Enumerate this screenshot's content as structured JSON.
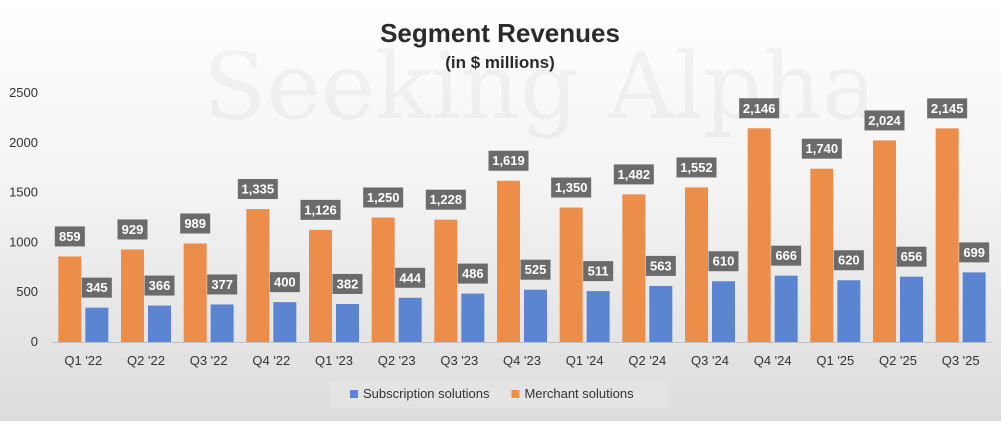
{
  "chart_data": {
    "type": "bar",
    "title": "Segment Revenues",
    "subtitle": "(in $ millions)",
    "watermark": "Seeking Alpha",
    "categories": [
      "Q1 '22",
      "Q2 '22",
      "Q3 '22",
      "Q4 '22",
      "Q1 '23",
      "Q2 '23",
      "Q3 '23",
      "Q4 '23",
      "Q1 '24",
      "Q2 '24",
      "Q3 '24",
      "Q4 '24",
      "Q1 '25",
      "Q2 '25",
      "Q3 '25"
    ],
    "series": [
      {
        "name": "Merchant solutions",
        "color": "#ED8D4A",
        "values": [
          859,
          929,
          989,
          1335,
          1126,
          1250,
          1228,
          1619,
          1350,
          1482,
          1552,
          2146,
          1740,
          2024,
          2145
        ],
        "labels": [
          "859",
          "929",
          "989",
          "1,335",
          "1,126",
          "1,250",
          "1,228",
          "1,619",
          "1,350",
          "1,482",
          "1,552",
          "2,146",
          "1,740",
          "2,024",
          "2,145"
        ]
      },
      {
        "name": "Subscription solutions",
        "color": "#5B85D1",
        "values": [
          345,
          366,
          377,
          400,
          382,
          444,
          486,
          525,
          511,
          563,
          610,
          666,
          620,
          656,
          699
        ],
        "labels": [
          "345",
          "366",
          "377",
          "400",
          "382",
          "444",
          "486",
          "525",
          "511",
          "563",
          "610",
          "666",
          "620",
          "656",
          "699"
        ]
      }
    ],
    "ylim": [
      0,
      2500
    ],
    "yticks": [
      0,
      500,
      1000,
      1500,
      2000,
      2500
    ],
    "ytick_labels": [
      "0",
      "500",
      "1000",
      "1500",
      "2000",
      "2500"
    ],
    "data_label_bg": "#6b6b6b",
    "legend": {
      "position": "bottom",
      "items": [
        {
          "name": "Subscription solutions",
          "color": "#5B85D1"
        },
        {
          "name": "Merchant solutions",
          "color": "#ED8D4A"
        }
      ]
    },
    "grid": false
  }
}
